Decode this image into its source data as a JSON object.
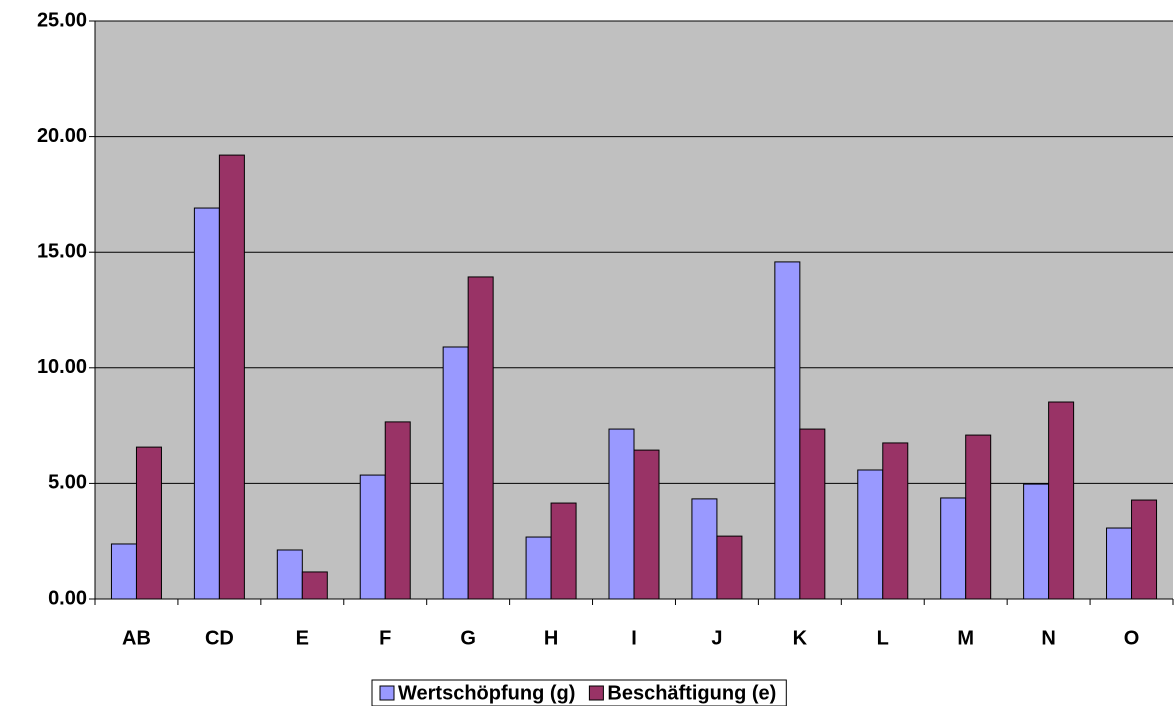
{
  "chart_data": {
    "type": "bar",
    "categories": [
      "AB",
      "CD",
      "E",
      "F",
      "G",
      "H",
      "I",
      "J",
      "K",
      "L",
      "M",
      "N",
      "O"
    ],
    "series": [
      {
        "name": "Wertschöpfung (g)",
        "color": "#9999ff",
        "values": [
          2.38,
          16.91,
          2.12,
          5.36,
          10.9,
          2.68,
          7.35,
          4.33,
          14.58,
          5.58,
          4.37,
          4.97,
          3.07
        ]
      },
      {
        "name": "Beschäftigung (e)",
        "color": "#993366",
        "values": [
          6.57,
          19.2,
          1.17,
          7.66,
          13.93,
          4.15,
          6.44,
          2.72,
          7.35,
          6.75,
          7.09,
          8.52,
          4.28
        ]
      }
    ],
    "ylim": [
      0,
      25
    ],
    "yticks": [
      {
        "value": 0,
        "label": "0.00"
      },
      {
        "value": 5,
        "label": "5.00"
      },
      {
        "value": 10,
        "label": "10.00"
      },
      {
        "value": 15,
        "label": "15.00"
      },
      {
        "value": 20,
        "label": "20.00"
      },
      {
        "value": 25,
        "label": "25.00"
      }
    ],
    "grid": true,
    "plot_background": "#c0c0c0",
    "legend": "bottom"
  }
}
